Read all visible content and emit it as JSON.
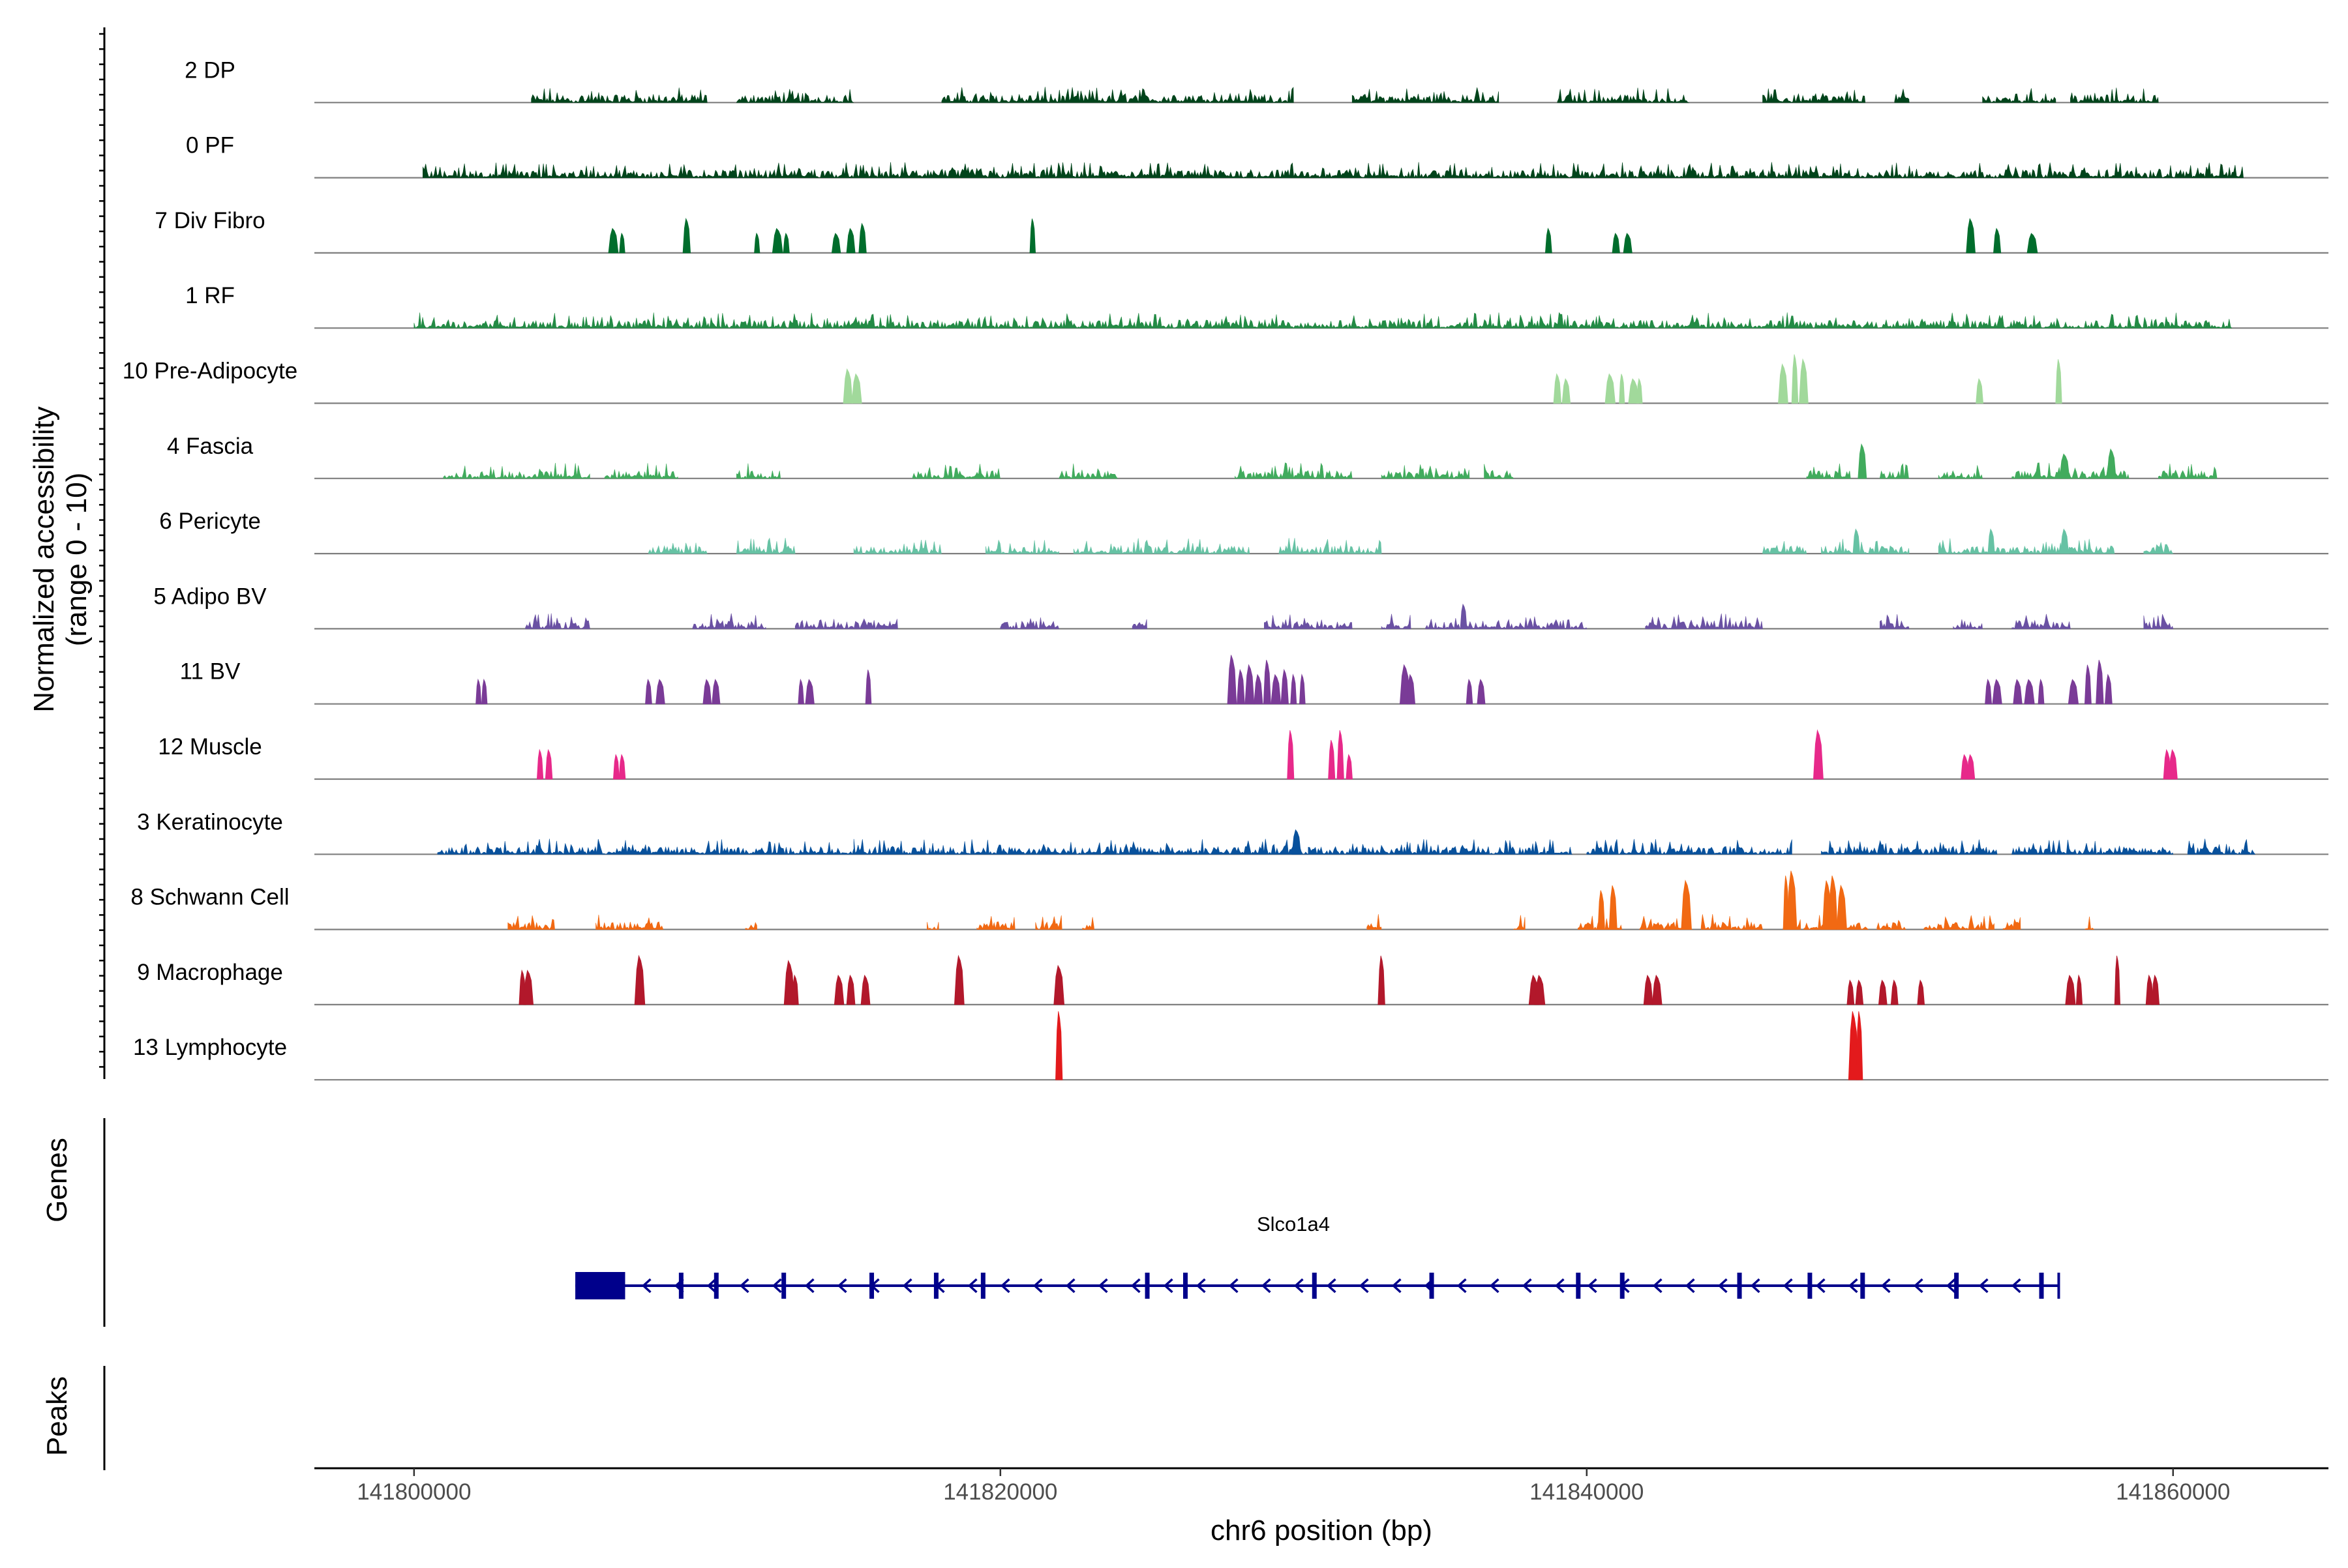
{
  "chart_data": {
    "type": "genome-track",
    "y_axis_label": "Normalized accessibility",
    "y_axis_sublabel": "(range 0 - 10)",
    "ylim": [
      0,
      10
    ],
    "x_axis_label": "chr6 position (bp)",
    "xlim": [
      141796600,
      141865300
    ],
    "x_ticks": [
      141800000,
      141820000,
      141840000,
      141860000
    ],
    "x_tick_labels": [
      "141800000",
      "141820000",
      "141840000",
      "141860000"
    ],
    "tracks": [
      {
        "label": "2 DP",
        "color": "#00441b",
        "style": "dense",
        "regions": [
          [
            141804000,
            141810000
          ],
          [
            141811000,
            141815000
          ],
          [
            141818000,
            141830000
          ],
          [
            141832000,
            141837000
          ],
          [
            141839000,
            141843500
          ],
          [
            141846000,
            141849500
          ],
          [
            141850500,
            141851000
          ],
          [
            141853500,
            141856000
          ],
          [
            141856500,
            141859500
          ]
        ]
      },
      {
        "label": "0 PF",
        "color": "#00441b",
        "style": "dense",
        "regions": [
          [
            141800300,
            141862400
          ]
        ]
      },
      {
        "label": "7 Div Fibro",
        "color": "#006d2c",
        "style": "peaks",
        "peaks": [
          [
            141806800,
            5
          ],
          [
            141807100,
            4
          ],
          [
            141809300,
            7
          ],
          [
            141811700,
            4
          ],
          [
            141812400,
            5
          ],
          [
            141812700,
            4
          ],
          [
            141814400,
            4
          ],
          [
            141814900,
            5
          ],
          [
            141815300,
            6
          ],
          [
            141821100,
            7
          ],
          [
            141838700,
            5
          ],
          [
            141841000,
            4
          ],
          [
            141841400,
            4
          ],
          [
            141853100,
            7
          ],
          [
            141854000,
            5
          ],
          [
            141855200,
            4
          ]
        ]
      },
      {
        "label": "1 RF",
        "color": "#238b45",
        "style": "dense",
        "regions": [
          [
            141800000,
            141862000
          ]
        ]
      },
      {
        "label": "10 Pre-Adipocyte",
        "color": "#a1d99b",
        "style": "peaks",
        "peaks": [
          [
            141814800,
            7
          ],
          [
            141815100,
            6
          ],
          [
            141839000,
            6
          ],
          [
            141839300,
            5
          ],
          [
            141840800,
            6
          ],
          [
            141841200,
            6
          ],
          [
            141841600,
            5
          ],
          [
            141841800,
            5
          ],
          [
            141846700,
            8
          ],
          [
            141847100,
            10
          ],
          [
            141847400,
            9
          ],
          [
            141853400,
            5
          ],
          [
            141856100,
            9
          ]
        ]
      },
      {
        "label": "4 Fascia",
        "color": "#41ab5d",
        "style": "dense",
        "regions": [
          [
            141801000,
            141806000
          ],
          [
            141806500,
            141809000
          ],
          [
            141811000,
            141812500
          ],
          [
            141817000,
            141820000
          ],
          [
            141822000,
            141824000
          ],
          [
            141828000,
            141832000
          ],
          [
            141833000,
            141836000
          ],
          [
            141836500,
            141837500
          ],
          [
            141847500,
            141849000
          ],
          [
            141850000,
            141851000
          ],
          [
            141852000,
            141853500
          ],
          [
            141854500,
            141858500
          ],
          [
            141859500,
            141861500
          ]
        ],
        "peaks": [
          [
            141849400,
            7
          ],
          [
            141856300,
            5
          ],
          [
            141857900,
            6
          ]
        ]
      },
      {
        "label": "6 Pericyte",
        "color": "#66c2a4",
        "style": "dense",
        "regions": [
          [
            141808000,
            141810000
          ],
          [
            141811000,
            141813000
          ],
          [
            141815000,
            141818000
          ],
          [
            141819500,
            141822000
          ],
          [
            141822500,
            141828500
          ],
          [
            141829500,
            141833000
          ],
          [
            141846000,
            141847500
          ],
          [
            141848000,
            141851000
          ],
          [
            141852000,
            141858000
          ],
          [
            141859000,
            141860000
          ]
        ],
        "peaks": [
          [
            141849200,
            5
          ],
          [
            141853800,
            5
          ],
          [
            141856300,
            5
          ]
        ]
      },
      {
        "label": "5 Adipo BV",
        "color": "#6a51a3",
        "style": "dense",
        "regions": [
          [
            141803800,
            141806000
          ],
          [
            141809500,
            141812000
          ],
          [
            141813000,
            141816500
          ],
          [
            141820000,
            141822000
          ],
          [
            141824500,
            141825000
          ],
          [
            141829000,
            141832000
          ],
          [
            141833000,
            141834000
          ],
          [
            141834500,
            141840000
          ],
          [
            141842000,
            141846000
          ],
          [
            141850000,
            141851000
          ],
          [
            141852500,
            141853500
          ],
          [
            141854500,
            141856500
          ],
          [
            141859000,
            141860000
          ]
        ],
        "peaks": [
          [
            141835800,
            5
          ]
        ]
      },
      {
        "label": "11 BV",
        "color": "#7a3b97",
        "style": "peaks",
        "peaks": [
          [
            141802200,
            5
          ],
          [
            141802400,
            5
          ],
          [
            141808000,
            5
          ],
          [
            141808400,
            5
          ],
          [
            141810000,
            5
          ],
          [
            141810300,
            5
          ],
          [
            141813200,
            5
          ],
          [
            141813500,
            5
          ],
          [
            141815500,
            7
          ],
          [
            141827900,
            10
          ],
          [
            141828200,
            7
          ],
          [
            141828500,
            8
          ],
          [
            141828800,
            6
          ],
          [
            141829100,
            9
          ],
          [
            141829400,
            6
          ],
          [
            141829700,
            7
          ],
          [
            141830000,
            6
          ],
          [
            141830300,
            6
          ],
          [
            141833800,
            8
          ],
          [
            141834000,
            6
          ],
          [
            141836000,
            5
          ],
          [
            141836400,
            5
          ],
          [
            141853700,
            5
          ],
          [
            141854000,
            5
          ],
          [
            141854700,
            5
          ],
          [
            141855100,
            5
          ],
          [
            141855500,
            5
          ],
          [
            141856600,
            5
          ],
          [
            141857100,
            8
          ],
          [
            141857500,
            9
          ],
          [
            141857800,
            6
          ]
        ]
      },
      {
        "label": "12 Muscle",
        "color": "#e7298a",
        "style": "peaks",
        "peaks": [
          [
            141804300,
            6
          ],
          [
            141804600,
            6
          ],
          [
            141806900,
            5
          ],
          [
            141807100,
            5
          ],
          [
            141829900,
            10
          ],
          [
            141831300,
            8
          ],
          [
            141831600,
            10
          ],
          [
            141831900,
            5
          ],
          [
            141847900,
            10
          ],
          [
            141852900,
            5
          ],
          [
            141853100,
            5
          ],
          [
            141859800,
            6
          ],
          [
            141860000,
            6
          ]
        ]
      },
      {
        "label": "3 Keratinocyte",
        "color": "#08519c",
        "style": "dense",
        "regions": [
          [
            141800800,
            141815000
          ],
          [
            141815000,
            141818000
          ],
          [
            141818000,
            141824000
          ],
          [
            141824000,
            141830500
          ],
          [
            141830500,
            141834000
          ],
          [
            141834000,
            141839500
          ],
          [
            141840000,
            141847000
          ],
          [
            141848000,
            141854000
          ],
          [
            141854500,
            141860000
          ],
          [
            141860500,
            141862800
          ]
        ],
        "peaks": [
          [
            141830100,
            5
          ]
        ]
      },
      {
        "label": "8 Schwann Cell",
        "color": "#f16913",
        "style": "dense",
        "regions": [
          [
            141803200,
            141804800
          ],
          [
            141806200,
            141808500
          ],
          [
            141811300,
            141811700
          ],
          [
            141817500,
            141817900
          ],
          [
            141819200,
            141820500
          ],
          [
            141821200,
            141822100
          ],
          [
            141822800,
            141823200
          ],
          [
            141832500,
            141833000
          ],
          [
            141837500,
            141837900
          ],
          [
            141839700,
            141841200
          ],
          [
            141841800,
            141843600
          ],
          [
            141843900,
            141846000
          ],
          [
            141846700,
            141847300
          ],
          [
            141847400,
            141849600
          ],
          [
            141849900,
            141850900
          ],
          [
            141851500,
            141853900
          ],
          [
            141854200,
            141854800
          ],
          [
            141857000,
            141857300
          ]
        ],
        "peaks": [
          [
            141840500,
            8
          ],
          [
            141840900,
            9
          ],
          [
            141843400,
            10
          ],
          [
            141846800,
            11
          ],
          [
            141847000,
            12
          ],
          [
            141848200,
            10
          ],
          [
            141848400,
            11
          ],
          [
            141848700,
            9
          ]
        ]
      },
      {
        "label": "9 Macrophage",
        "color": "#b2182b",
        "style": "peaks",
        "peaks": [
          [
            141803700,
            7
          ],
          [
            141803900,
            7
          ],
          [
            141807700,
            10
          ],
          [
            141812800,
            9
          ],
          [
            141813000,
            6
          ],
          [
            141814500,
            6
          ],
          [
            141814900,
            6
          ],
          [
            141815400,
            6
          ],
          [
            141818600,
            10
          ],
          [
            141822000,
            8
          ],
          [
            141833000,
            10
          ],
          [
            141838200,
            6
          ],
          [
            141838400,
            6
          ],
          [
            141842100,
            6
          ],
          [
            141842400,
            6
          ],
          [
            141849000,
            5
          ],
          [
            141849300,
            5
          ],
          [
            141850100,
            5
          ],
          [
            141850500,
            5
          ],
          [
            141851400,
            5
          ],
          [
            141856500,
            6
          ],
          [
            141856800,
            6
          ],
          [
            141858100,
            10
          ],
          [
            141859200,
            6
          ],
          [
            141859400,
            6
          ]
        ]
      },
      {
        "label": "13 Lymphocyte",
        "color": "#e31a1c",
        "style": "peaks",
        "peaks": [
          [
            141822000,
            14
          ],
          [
            141849100,
            14
          ],
          [
            141849300,
            14
          ]
        ]
      }
    ],
    "genes_track_label": "Genes",
    "peaks_track_label": "Peaks",
    "gene": {
      "name": "Slco1a4",
      "color": "#00008b",
      "strand": "-",
      "start": 141805500,
      "end": 141856100,
      "thick_start": 141805500,
      "thick_end": 141807200,
      "exons": [
        141809100,
        141810300,
        141812600,
        141815600,
        141817800,
        141819400,
        141825000,
        141826300,
        141830700,
        141834700,
        141839700,
        141841200,
        141845200,
        141847600,
        141849400,
        141852600,
        141855500
      ]
    }
  }
}
